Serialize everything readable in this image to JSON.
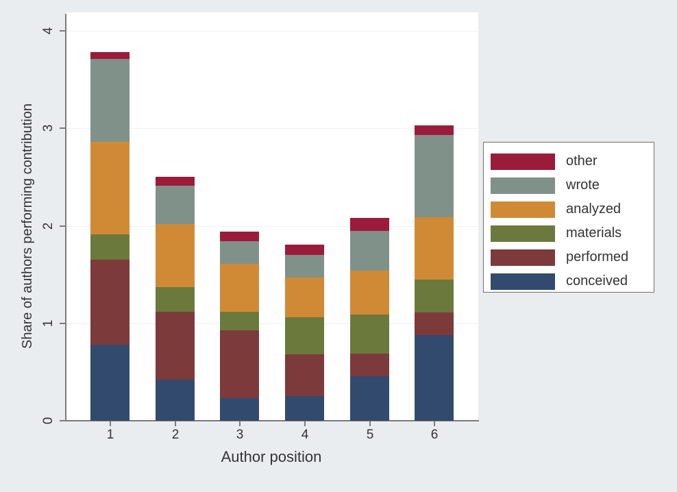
{
  "chart_data": {
    "type": "bar",
    "stacked": true,
    "title": "",
    "xlabel": "Author position",
    "ylabel": "Share of authors performing contribution",
    "ylim": [
      0,
      4
    ],
    "yticks": [
      "0",
      "1",
      "2",
      "3",
      "4"
    ],
    "categories": [
      "1",
      "2",
      "3",
      "4",
      "5",
      "6"
    ],
    "grid": true,
    "legend_position": "right",
    "series": [
      {
        "name": "conceived",
        "color": "#324a6e",
        "values": [
          0.78,
          0.42,
          0.23,
          0.25,
          0.46,
          0.88
        ]
      },
      {
        "name": "performed",
        "color": "#7d3a3b",
        "values": [
          0.87,
          0.7,
          0.7,
          0.43,
          0.23,
          0.23
        ]
      },
      {
        "name": "materials",
        "color": "#6b7a3c",
        "values": [
          0.26,
          0.25,
          0.19,
          0.38,
          0.4,
          0.34
        ]
      },
      {
        "name": "analyzed",
        "color": "#d08a35",
        "values": [
          0.95,
          0.65,
          0.49,
          0.41,
          0.45,
          0.64
        ]
      },
      {
        "name": "wrote",
        "color": "#80918a",
        "values": [
          0.85,
          0.39,
          0.23,
          0.23,
          0.41,
          0.84
        ]
      },
      {
        "name": "other",
        "color": "#9b1b3a",
        "values": [
          0.07,
          0.09,
          0.1,
          0.11,
          0.13,
          0.1
        ]
      }
    ]
  },
  "legend": {
    "items": [
      {
        "label": "other",
        "color": "#9b1b3a"
      },
      {
        "label": "wrote",
        "color": "#80918a"
      },
      {
        "label": "analyzed",
        "color": "#d08a35"
      },
      {
        "label": "materials",
        "color": "#6b7a3c"
      },
      {
        "label": "performed",
        "color": "#7d3a3b"
      },
      {
        "label": "conceived",
        "color": "#324a6e"
      }
    ]
  },
  "axes": {
    "x_title": "Author position",
    "y_title": "Share of authors performing contribution",
    "y_ticks": [
      "0",
      "1",
      "2",
      "3",
      "4"
    ],
    "x_ticks": [
      "1",
      "2",
      "3",
      "4",
      "5",
      "6"
    ]
  }
}
